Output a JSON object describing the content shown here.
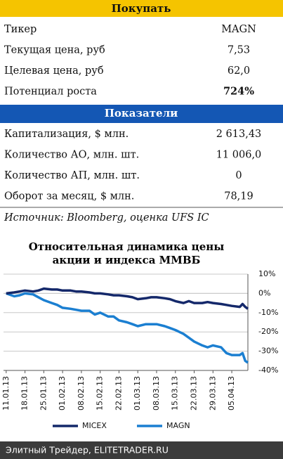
{
  "buy_table": {
    "title": "Покупать",
    "rows": [
      [
        "Тикер",
        "MAGN"
      ],
      [
        "Текущая цена, руб",
        "7,53"
      ],
      [
        "Целевая цена, руб",
        "62,0"
      ],
      [
        "Потенциал роста",
        "724%"
      ]
    ]
  },
  "indicators_table": {
    "title": "Показатели",
    "rows": [
      [
        "Капитализация, $ млн.",
        "2 613,43"
      ],
      [
        "Количество АО, млн. шт.",
        "11 006,0"
      ],
      [
        "Количество АП, млн. шт.",
        "0"
      ],
      [
        "Оборот за месяц, $ млн.",
        "78,19"
      ]
    ]
  },
  "source": "Источник: Bloomberg, оценка UFS IC",
  "chart_data": {
    "type": "line",
    "title": [
      "Относительная динамика цены",
      "акции и индекса ММВБ"
    ],
    "x": [
      "11.01.13",
      "14.01.13",
      "16.01.13",
      "18.01.13",
      "21.01.13",
      "23.01.13",
      "25.01.13",
      "28.01.13",
      "30.01.13",
      "01.02.13",
      "04.02.13",
      "06.02.13",
      "08.02.13",
      "11.02.13",
      "13.02.13",
      "15.02.13",
      "18.02.13",
      "20.02.13",
      "22.02.13",
      "25.02.13",
      "27.02.13",
      "01.03.13",
      "04.03.13",
      "06.03.13",
      "08.03.13",
      "11.03.13",
      "13.03.13",
      "15.03.13",
      "18.03.13",
      "20.03.13",
      "22.03.13",
      "25.03.13",
      "27.03.13",
      "29.03.13",
      "01.04.13",
      "03.04.13",
      "05.04.13",
      "08.04.13",
      "09.04.13",
      "10.04.13",
      "11.04.13"
    ],
    "series": [
      {
        "name": "MICEX",
        "color": "#14286a",
        "values": [
          0,
          0.5,
          1,
          1.5,
          1,
          1.5,
          2.5,
          2,
          2,
          1.5,
          1.5,
          1,
          1,
          0.5,
          0,
          0,
          -0.5,
          -1,
          -1,
          -1.5,
          -2,
          -3,
          -2.5,
          -2,
          -2,
          -2.5,
          -3,
          -4,
          -5,
          -4,
          -5,
          -5,
          -4.5,
          -5,
          -5.5,
          -6,
          -6.5,
          -7,
          -5.5,
          -7,
          -8
        ]
      },
      {
        "name": "MAGN",
        "color": "#1b7fd1",
        "values": [
          0,
          -1.5,
          -1,
          0,
          -0.5,
          -2,
          -3.5,
          -5,
          -6,
          -7.5,
          -8,
          -8.5,
          -9,
          -9,
          -11,
          -10,
          -12,
          -12,
          -14,
          -15,
          -16,
          -17,
          -16,
          -16,
          -16,
          -17,
          -18,
          -19,
          -21,
          -23,
          -25,
          -27,
          -28,
          -27,
          -28,
          -31,
          -32,
          -32,
          -31,
          -35,
          -36
        ]
      }
    ],
    "xlim": [
      "10.01.13",
      "11.04.13"
    ],
    "xticks": [
      "11.01.13",
      "18.01.13",
      "25.01.13",
      "01.02.13",
      "08.02.13",
      "15.02.13",
      "22.02.13",
      "01.03.13",
      "08.03.13",
      "15.03.13",
      "22.03.13",
      "29.03.13",
      "05.04.13"
    ],
    "ylim": [
      -40,
      10
    ],
    "yticks": [
      {
        "value": 10,
        "label": "10%"
      },
      0,
      {
        "value": 0,
        "label": "0%"
      },
      {
        "value": -10,
        "label": "-10%"
      },
      {
        "value": -20,
        "label": "-20%"
      },
      {
        "value": -30,
        "label": "-30%"
      },
      {
        "value": -40,
        "label": "-40%"
      }
    ],
    "grid": true,
    "legend": "bottom"
  },
  "footer": "Элитный Трейдер, ELITETRADER.RU"
}
